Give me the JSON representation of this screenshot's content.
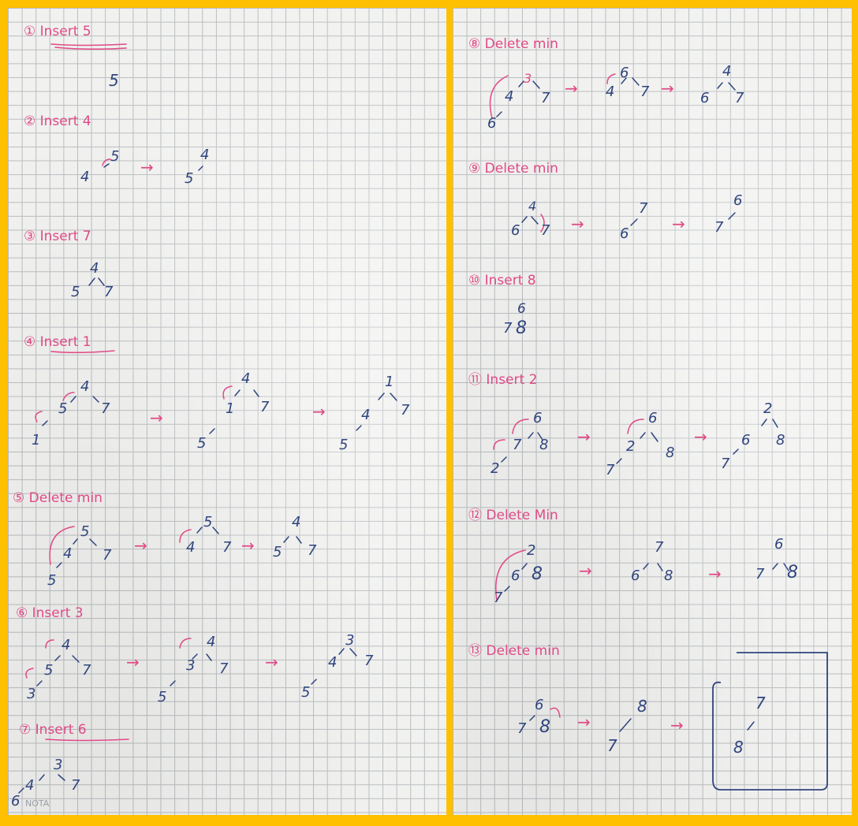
{
  "left_page": {
    "steps": [
      {
        "label": "① Insert 5",
        "trees": [
          [
            "5"
          ]
        ]
      },
      {
        "label": "② Insert 4",
        "trees": [
          [
            "5",
            "4"
          ],
          [
            "4",
            "5"
          ]
        ]
      },
      {
        "label": "③ Insert 7",
        "trees": [
          [
            "4",
            "5",
            "7"
          ]
        ]
      },
      {
        "label": "④ Insert 1",
        "trees": [
          [
            "4",
            "5",
            "7",
            "1"
          ],
          [
            "4",
            "1",
            "7",
            "5"
          ],
          [
            "1",
            "4",
            "7",
            "5"
          ]
        ]
      },
      {
        "label": "⑤ Delete min",
        "trees": [
          [
            "5",
            "4",
            "7",
            "5"
          ],
          [
            "5",
            "4",
            "7"
          ],
          [
            "4",
            "5",
            "7"
          ]
        ]
      },
      {
        "label": "⑥ Insert 3",
        "trees": [
          [
            "4",
            "5",
            "7",
            "3"
          ],
          [
            "4",
            "3",
            "7",
            "5"
          ],
          [
            "3",
            "4",
            "7",
            "5"
          ]
        ]
      },
      {
        "label": "⑦ Insert 6",
        "trees": [
          [
            "3",
            "4",
            "7",
            "6"
          ]
        ]
      }
    ],
    "footer": "NOTA"
  },
  "right_page": {
    "steps": [
      {
        "label": "⑧ Delete min",
        "trees": [
          [
            "3",
            "4",
            "7",
            "6"
          ],
          [
            "6",
            "4",
            "7"
          ],
          [
            "4",
            "6",
            "7"
          ]
        ]
      },
      {
        "label": "⑨ Delete min",
        "trees": [
          [
            "4",
            "6",
            "7"
          ],
          [
            "7",
            "6"
          ],
          [
            "6",
            "7"
          ]
        ]
      },
      {
        "label": "⑩ Insert 8",
        "trees": [
          [
            "6",
            "7",
            "8"
          ]
        ]
      },
      {
        "label": "⑪ Insert 2",
        "trees": [
          [
            "6",
            "7",
            "8",
            "2"
          ],
          [
            "6",
            "2",
            "8",
            "7"
          ],
          [
            "2",
            "6",
            "8",
            "7"
          ]
        ]
      },
      {
        "label": "⑫ Delete Min",
        "trees": [
          [
            "2",
            "6",
            "8",
            "7"
          ],
          [
            "7",
            "6",
            "8"
          ],
          [
            "6",
            "7",
            "8"
          ]
        ]
      },
      {
        "label": "⑬ Delete min",
        "trees": [
          [
            "6",
            "7",
            "8"
          ],
          [
            "8",
            "7"
          ],
          [
            "7",
            "8"
          ]
        ]
      }
    ]
  },
  "arrow": "→"
}
